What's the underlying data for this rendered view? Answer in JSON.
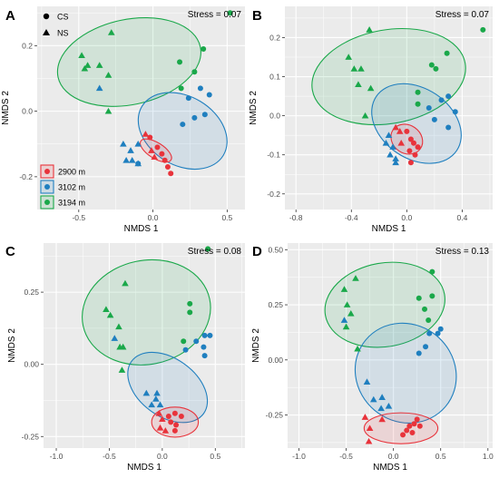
{
  "legend": {
    "shapes": [
      {
        "label": "CS",
        "shape": "circle"
      },
      {
        "label": "NS",
        "shape": "triangle"
      }
    ],
    "depths": [
      {
        "label": "2900 m",
        "color": "#e8333b"
      },
      {
        "label": "3102 m",
        "color": "#1f7fbf"
      },
      {
        "label": "3194 m",
        "color": "#1aa84a"
      }
    ]
  },
  "colors": {
    "panel_bg": "#ebebeb",
    "grid": "#ffffff",
    "red": "#e8333b",
    "blue": "#1f7fbf",
    "green": "#1aa84a"
  },
  "chart_data": [
    {
      "panel": "A",
      "type": "scatter",
      "stress_label": "Stress = 0.07",
      "xlabel": "NMDS 1",
      "ylabel": "NMDS 2",
      "xlim": [
        -0.78,
        0.62
      ],
      "ylim": [
        -0.3,
        0.32
      ],
      "xticks": [
        -0.5,
        0.0,
        0.5
      ],
      "xtick_labels": [
        "-0.5",
        "0.0",
        "0.5"
      ],
      "yticks": [
        -0.2,
        0.0,
        0.2
      ],
      "ytick_labels": [
        "-0.2",
        "0.0",
        "0.2"
      ],
      "ellipses": [
        {
          "group": "3194 m",
          "cx": -0.16,
          "cy": 0.15,
          "rx": 0.49,
          "ry": 0.13,
          "angle": -12
        },
        {
          "group": "3102 m",
          "cx": 0.2,
          "cy": -0.06,
          "rx": 0.32,
          "ry": 0.105,
          "angle": 31
        },
        {
          "group": "2900 m",
          "cx": 0.02,
          "cy": -0.12,
          "rx": 0.12,
          "ry": 0.024,
          "angle": 32
        }
      ],
      "series": [
        {
          "group": "2900 m",
          "shape": "circle",
          "x": [
            -0.02,
            0.03,
            0.06,
            0.08,
            0.1,
            0.12
          ],
          "y": [
            -0.08,
            -0.11,
            -0.13,
            -0.15,
            -0.17,
            -0.19
          ]
        },
        {
          "group": "2900 m",
          "shape": "triangle",
          "x": [
            -0.05,
            -0.01,
            0.01
          ],
          "y": [
            -0.07,
            -0.12,
            -0.14
          ]
        },
        {
          "group": "3102 m",
          "shape": "circle",
          "x": [
            0.2,
            0.28,
            0.35,
            0.38,
            0.24,
            0.32,
            -0.1
          ],
          "y": [
            -0.04,
            -0.02,
            -0.01,
            0.05,
            0.04,
            0.07,
            -0.16
          ]
        },
        {
          "group": "3102 m",
          "shape": "triangle",
          "x": [
            -0.2,
            -0.15,
            -0.1,
            -0.18,
            -0.14,
            -0.1,
            -0.36
          ],
          "y": [
            -0.1,
            -0.12,
            -0.1,
            -0.15,
            -0.15,
            -0.16,
            0.07
          ]
        },
        {
          "group": "3194 m",
          "shape": "circle",
          "x": [
            0.52,
            0.34,
            0.18,
            0.28,
            0.19
          ],
          "y": [
            0.3,
            0.19,
            0.15,
            0.12,
            0.07
          ]
        },
        {
          "group": "3194 m",
          "shape": "triangle",
          "x": [
            -0.28,
            -0.48,
            -0.44,
            -0.36,
            -0.3,
            -0.46,
            -0.3
          ],
          "y": [
            0.24,
            0.17,
            0.14,
            0.14,
            0.11,
            0.13,
            0.0
          ]
        }
      ]
    },
    {
      "panel": "B",
      "type": "scatter",
      "stress_label": "Stress = 0.07",
      "xlabel": "NMDS 1",
      "ylabel": "NMDS 2",
      "xlim": [
        -0.88,
        0.62
      ],
      "ylim": [
        -0.24,
        0.28
      ],
      "xticks": [
        -0.8,
        -0.4,
        0.0,
        0.4
      ],
      "xtick_labels": [
        "-0.8",
        "-0.4",
        "0.0",
        "0.4"
      ],
      "yticks": [
        -0.2,
        -0.1,
        0.0,
        0.1,
        0.2
      ],
      "ytick_labels": [
        "-0.2",
        "-0.1",
        "0.0",
        "0.1",
        "0.2"
      ],
      "ellipses": [
        {
          "group": "3194 m",
          "cx": -0.13,
          "cy": 0.1,
          "rx": 0.56,
          "ry": 0.12,
          "angle": -10
        },
        {
          "group": "3102 m",
          "cx": 0.07,
          "cy": -0.02,
          "rx": 0.35,
          "ry": 0.09,
          "angle": 34
        },
        {
          "group": "2900 m",
          "cx": 0.0,
          "cy": -0.06,
          "rx": 0.12,
          "ry": 0.036,
          "angle": 35
        }
      ],
      "series": [
        {
          "group": "2900 m",
          "shape": "circle",
          "x": [
            0.0,
            0.03,
            0.05,
            0.08,
            0.02,
            0.06,
            0.03
          ],
          "y": [
            -0.04,
            -0.06,
            -0.07,
            -0.08,
            -0.09,
            -0.1,
            -0.12
          ]
        },
        {
          "group": "2900 m",
          "shape": "triangle",
          "x": [
            -0.08,
            -0.05,
            -0.04
          ],
          "y": [
            -0.03,
            -0.04,
            -0.07
          ]
        },
        {
          "group": "3102 m",
          "shape": "circle",
          "x": [
            0.3,
            0.25,
            0.35,
            0.3,
            0.16,
            0.2
          ],
          "y": [
            0.05,
            0.04,
            0.01,
            -0.03,
            0.02,
            -0.01
          ]
        },
        {
          "group": "3102 m",
          "shape": "triangle",
          "x": [
            -0.13,
            -0.1,
            -0.08,
            -0.12,
            -0.08,
            -0.15
          ],
          "y": [
            -0.05,
            -0.08,
            -0.11,
            -0.1,
            -0.12,
            -0.07
          ]
        },
        {
          "group": "3194 m",
          "shape": "circle",
          "x": [
            0.55,
            0.29,
            0.18,
            0.21,
            0.08,
            0.08
          ],
          "y": [
            0.22,
            0.16,
            0.13,
            0.12,
            0.06,
            0.03
          ]
        },
        {
          "group": "3194 m",
          "shape": "triangle",
          "x": [
            -0.27,
            -0.42,
            -0.38,
            -0.33,
            -0.35,
            -0.26,
            -0.3
          ],
          "y": [
            0.22,
            0.15,
            0.12,
            0.12,
            0.08,
            0.07,
            0.0
          ]
        }
      ]
    },
    {
      "panel": "C",
      "type": "scatter",
      "stress_label": "Stress = 0.08",
      "xlabel": "NMDS 1",
      "ylabel": "NMDS 2",
      "xlim": [
        -1.12,
        0.78
      ],
      "ylim": [
        -0.29,
        0.42
      ],
      "xticks": [
        -1.0,
        -0.5,
        0.0,
        0.5
      ],
      "xtick_labels": [
        "-1.0",
        "-0.5",
        "0.0",
        "0.5"
      ],
      "yticks": [
        -0.25,
        0.0,
        0.25
      ],
      "ytick_labels": [
        "-0.25",
        "0.00",
        "0.25"
      ],
      "ellipses": [
        {
          "group": "3194 m",
          "cx": -0.15,
          "cy": 0.18,
          "rx": 0.61,
          "ry": 0.18,
          "angle": -12
        },
        {
          "group": "3102 m",
          "cx": 0.05,
          "cy": -0.08,
          "rx": 0.42,
          "ry": 0.1,
          "angle": 36
        },
        {
          "group": "2900 m",
          "cx": 0.12,
          "cy": -0.2,
          "rx": 0.22,
          "ry": 0.052,
          "angle": 0
        }
      ],
      "series": [
        {
          "group": "2900 m",
          "shape": "circle",
          "x": [
            0.06,
            0.12,
            0.18,
            0.08,
            0.13,
            0.12
          ],
          "y": [
            -0.18,
            -0.17,
            -0.18,
            -0.2,
            -0.21,
            -0.23
          ]
        },
        {
          "group": "2900 m",
          "shape": "triangle",
          "x": [
            -0.03,
            0.0,
            -0.02,
            0.03
          ],
          "y": [
            -0.17,
            -0.19,
            -0.22,
            -0.23
          ]
        },
        {
          "group": "3102 m",
          "shape": "circle",
          "x": [
            0.45,
            0.4,
            0.32,
            0.39,
            0.22,
            0.4
          ],
          "y": [
            0.1,
            0.1,
            0.08,
            0.06,
            0.05,
            0.03
          ]
        },
        {
          "group": "3102 m",
          "shape": "triangle",
          "x": [
            -0.15,
            -0.05,
            -0.02,
            -0.1,
            -0.06,
            -0.45
          ],
          "y": [
            -0.1,
            -0.1,
            -0.14,
            -0.14,
            -0.12,
            0.09
          ]
        },
        {
          "group": "3194 m",
          "shape": "circle",
          "x": [
            0.43,
            0.26,
            0.26,
            0.2
          ],
          "y": [
            0.4,
            0.21,
            0.18,
            0.08
          ]
        },
        {
          "group": "3194 m",
          "shape": "triangle",
          "x": [
            -0.35,
            -0.53,
            -0.49,
            -0.41,
            -0.37,
            -0.4,
            -0.38
          ],
          "y": [
            0.28,
            0.19,
            0.17,
            0.13,
            0.06,
            0.06,
            -0.02
          ]
        }
      ]
    },
    {
      "panel": "D",
      "type": "scatter",
      "stress_label": "Stress = 0.13",
      "xlabel": "NMDS 1",
      "ylabel": "NMDS 2",
      "xlim": [
        -1.12,
        1.05
      ],
      "ylim": [
        -0.4,
        0.53
      ],
      "xticks": [
        -1.0,
        -0.5,
        0.0,
        0.5,
        1.0
      ],
      "xtick_labels": [
        "-1.0",
        "-0.5",
        "0.0",
        "0.5",
        "1.0"
      ],
      "yticks": [
        -0.25,
        0.0,
        0.25,
        0.5
      ],
      "ytick_labels": [
        "-0.25",
        "0.00",
        "0.25",
        "0.50"
      ],
      "ellipses": [
        {
          "group": "3194 m",
          "cx": -0.09,
          "cy": 0.25,
          "rx": 0.64,
          "ry": 0.19,
          "angle": -10
        },
        {
          "group": "3102 m",
          "cx": 0.13,
          "cy": -0.06,
          "rx": 0.55,
          "ry": 0.22,
          "angle": 40
        },
        {
          "group": "2900 m",
          "cx": 0.08,
          "cy": -0.31,
          "rx": 0.39,
          "ry": 0.07,
          "angle": 0
        }
      ],
      "series": [
        {
          "group": "2900 m",
          "shape": "circle",
          "x": [
            0.22,
            0.25,
            0.17,
            0.28,
            0.14,
            0.1,
            0.2
          ],
          "y": [
            -0.29,
            -0.27,
            -0.3,
            -0.3,
            -0.32,
            -0.34,
            -0.33
          ]
        },
        {
          "group": "2900 m",
          "shape": "triangle",
          "x": [
            -0.3,
            -0.25,
            -0.12,
            -0.26
          ],
          "y": [
            -0.26,
            -0.31,
            -0.27,
            -0.37
          ]
        },
        {
          "group": "3102 m",
          "shape": "circle",
          "x": [
            0.5,
            0.47,
            0.38,
            0.34,
            0.27
          ],
          "y": [
            0.14,
            0.12,
            0.12,
            0.06,
            0.03
          ]
        },
        {
          "group": "3102 m",
          "shape": "triangle",
          "x": [
            -0.28,
            -0.21,
            -0.12,
            -0.13,
            -0.05,
            -0.52
          ],
          "y": [
            -0.1,
            -0.18,
            -0.17,
            -0.22,
            -0.21,
            0.18
          ]
        },
        {
          "group": "3194 m",
          "shape": "circle",
          "x": [
            0.41,
            0.41,
            0.27,
            0.33,
            0.37
          ],
          "y": [
            0.4,
            0.29,
            0.28,
            0.23,
            0.18
          ]
        },
        {
          "group": "3194 m",
          "shape": "triangle",
          "x": [
            -0.4,
            -0.52,
            -0.49,
            -0.45,
            -0.5,
            -0.38
          ],
          "y": [
            0.37,
            0.32,
            0.25,
            0.21,
            0.15,
            0.05
          ]
        }
      ]
    }
  ]
}
